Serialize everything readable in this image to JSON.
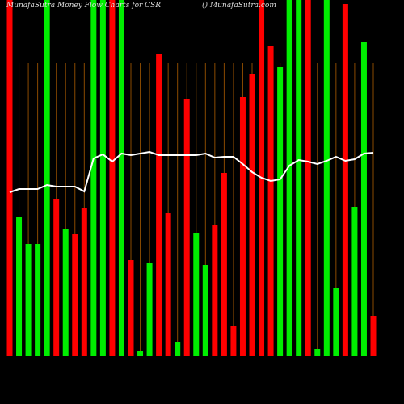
{
  "chart_data": {
    "type": "bar",
    "title": "MunafaSutra Money Flow Charts for CSR",
    "subtitle": "() MunafaSutra.com",
    "values": [
      440,
      172,
      138,
      138,
      440,
      194,
      156,
      150,
      182,
      440,
      440,
      440,
      440,
      118,
      5,
      115,
      373,
      176,
      17,
      318,
      152,
      112,
      161,
      226,
      37,
      320,
      348,
      440,
      383,
      357,
      440,
      440,
      440,
      8,
      440,
      83,
      435,
      184,
      388,
      49
    ],
    "colors": [
      "#ff0000",
      "#00ee00",
      "#00ee00",
      "#00ee00",
      "#00ee00",
      "#ff0000",
      "#00ee00",
      "#ff0000",
      "#ff0000",
      "#00ee00",
      "#00ee00",
      "#ff0000",
      "#00ee00",
      "#ff0000",
      "#00ee00",
      "#00ee00",
      "#ff0000",
      "#ff0000",
      "#00ee00",
      "#ff0000",
      "#00ee00",
      "#00ee00",
      "#ff0000",
      "#ff0000",
      "#ff0000",
      "#ff0000",
      "#ff0000",
      "#ff0000",
      "#ff0000",
      "#00ee00",
      "#00ee00",
      "#00ee00",
      "#ff0000",
      "#00ee00",
      "#00ee00",
      "#00ee00",
      "#ff0000",
      "#00ee00",
      "#00ee00",
      "#ff0000"
    ],
    "line_values": [
      202,
      206,
      206,
      206,
      211,
      209,
      209,
      209,
      203,
      244,
      249,
      240,
      250,
      248,
      250,
      252,
      248,
      248,
      248,
      248,
      248,
      250,
      245,
      246,
      246,
      237,
      227,
      220,
      216,
      218,
      235,
      242,
      240,
      237,
      241,
      246,
      241,
      243,
      250,
      251
    ],
    "line_color": "#ffffff",
    "grid_color": "#8a4a00",
    "ylim": [
      0,
      440
    ]
  }
}
